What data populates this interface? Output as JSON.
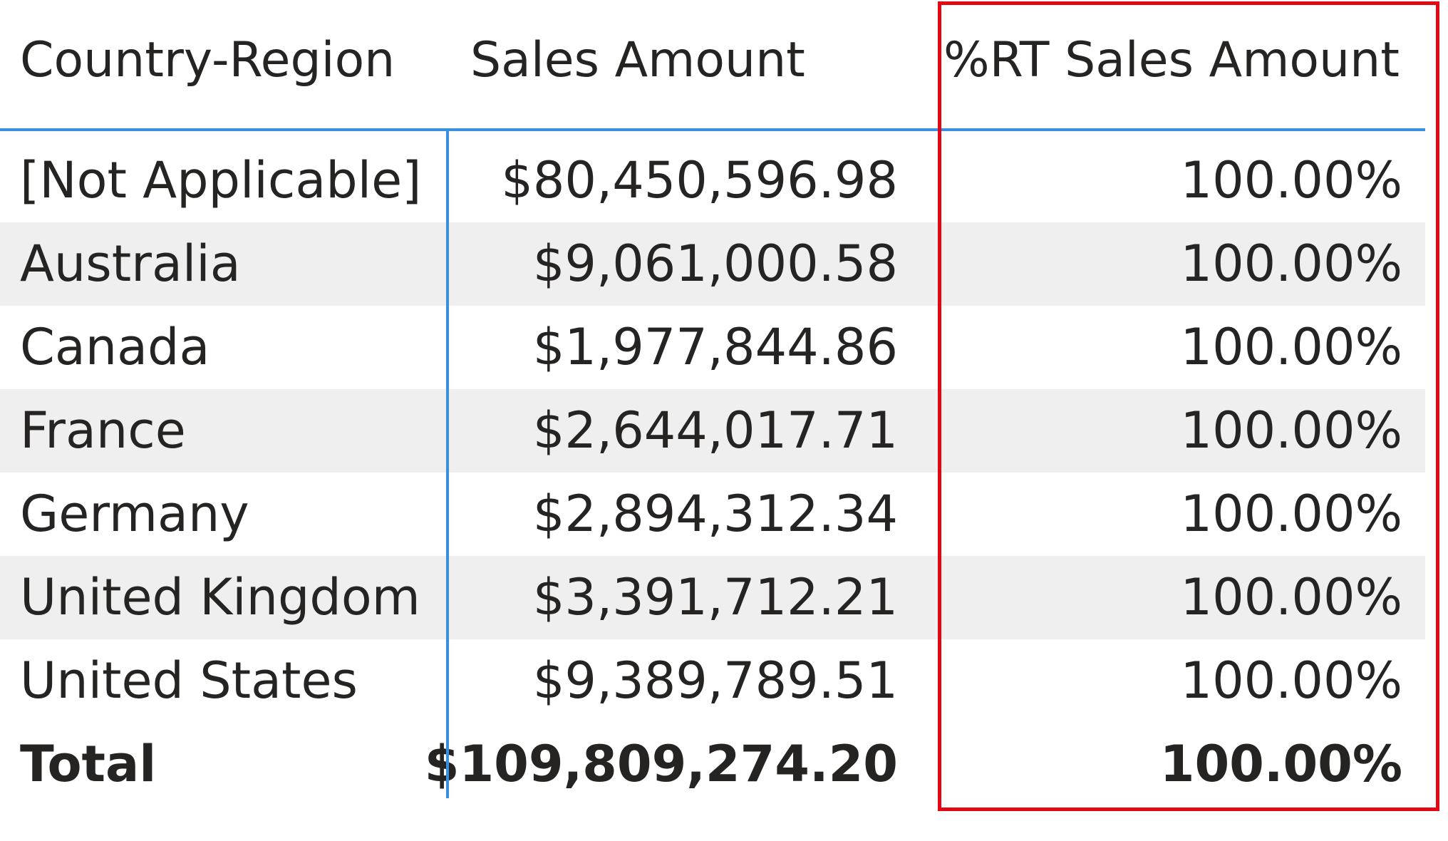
{
  "table": {
    "columns": [
      "Country-Region",
      "Sales Amount",
      "%RT Sales Amount"
    ],
    "rows": [
      {
        "country": "[Not Applicable]",
        "sales": "$80,450,596.98",
        "pct": "100.00%"
      },
      {
        "country": "Australia",
        "sales": "$9,061,000.58",
        "pct": "100.00%"
      },
      {
        "country": "Canada",
        "sales": "$1,977,844.86",
        "pct": "100.00%"
      },
      {
        "country": "France",
        "sales": "$2,644,017.71",
        "pct": "100.00%"
      },
      {
        "country": "Germany",
        "sales": "$2,894,312.34",
        "pct": "100.00%"
      },
      {
        "country": "United Kingdom",
        "sales": "$3,391,712.21",
        "pct": "100.00%"
      },
      {
        "country": "United States",
        "sales": "$9,389,789.51",
        "pct": "100.00%"
      }
    ],
    "total": {
      "label": "Total",
      "sales": "$109,809,274.20",
      "pct": "100.00%"
    }
  },
  "colors": {
    "header_line": "#3a8fe0",
    "alt_row": "#efefef",
    "highlight_border": "#e30613",
    "text": "#252423"
  }
}
